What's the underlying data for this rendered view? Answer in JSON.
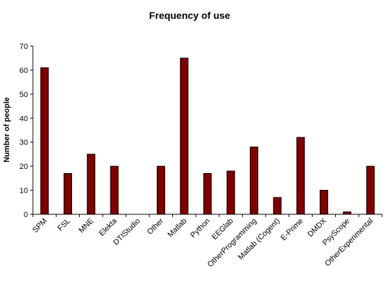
{
  "chart_data": {
    "type": "bar",
    "title": "Frequency of use",
    "xlabel": "",
    "ylabel": "Number of people",
    "ylim": [
      0,
      70
    ],
    "yticks": [
      0,
      10,
      20,
      30,
      40,
      50,
      60,
      70
    ],
    "grid": false,
    "legend": "none",
    "bar_color": "#800000",
    "categories": [
      "SPM",
      "FSL",
      "MNE",
      "Elekta",
      "DTIStudio",
      "Other",
      "Matlab",
      "Python",
      "EEGlab",
      "OtherProgramming",
      "Matlab (Cogent)",
      "E-Prime",
      "DMDX",
      "PsyScope",
      "OtherExperimental"
    ],
    "values": [
      61,
      17,
      25,
      20,
      0,
      20,
      65,
      17,
      18,
      28,
      7,
      32,
      10,
      1,
      20
    ]
  }
}
